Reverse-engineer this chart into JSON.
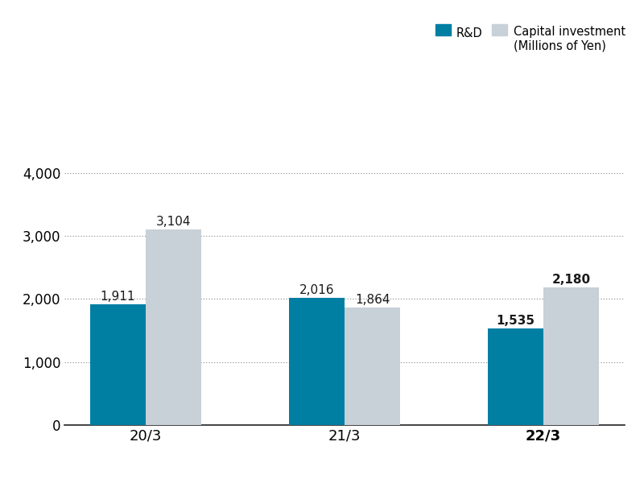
{
  "categories": [
    "20/3",
    "21/3",
    "22/3"
  ],
  "rd_values": [
    1911,
    2016,
    1535
  ],
  "cap_values": [
    3104,
    1864,
    2180
  ],
  "rd_color": "#007fa3",
  "cap_color": "#c8d0d8",
  "ylim": [
    0,
    4600
  ],
  "yticks": [
    0,
    1000,
    2000,
    3000,
    4000
  ],
  "bar_width": 0.28,
  "legend_rd": "R&D",
  "legend_cap": "Capital investment\n(Millions of Yen)",
  "background_color": "#ffffff",
  "grid_color": "#999999",
  "label_fontsize": 11,
  "tick_fontsize": 12,
  "grid_linestyle": "dotted",
  "grid_linewidth": 0.9
}
